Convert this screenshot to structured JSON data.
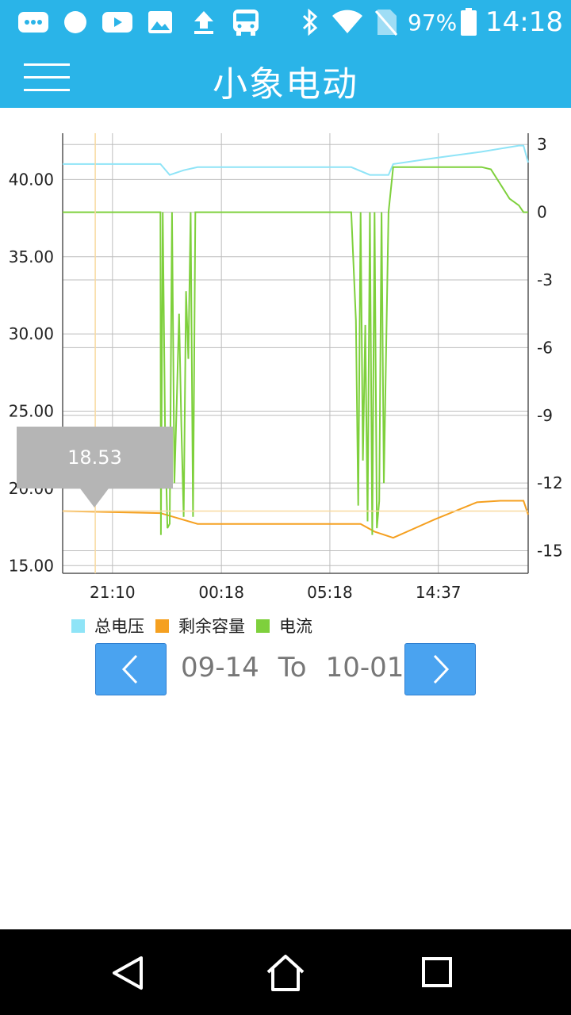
{
  "status_bar": {
    "icons": [
      "messages-icon",
      "dot-icon",
      "youtube-icon",
      "image-icon",
      "upload-icon",
      "bus-icon",
      "bluetooth-icon",
      "wifi-icon",
      "no-sim-icon",
      "battery-icon"
    ],
    "battery": "97%",
    "time": "14:18"
  },
  "toolbar": {
    "title": "小象电动",
    "menu_icon": "hamburger-menu-icon"
  },
  "chart": {
    "tooltip_value": "18.53",
    "left_axis_ticks": [
      "40.00",
      "35.00",
      "30.00",
      "25.00",
      "20.00",
      "15.00"
    ],
    "right_axis_ticks": [
      "3",
      "0",
      "-3",
      "-6",
      "-9",
      "-12",
      "-15"
    ],
    "x_ticks": [
      "21:10",
      "00:18",
      "05:18",
      "14:37"
    ]
  },
  "chart_data": {
    "type": "line",
    "x_labels": [
      "21:10",
      "00:18",
      "05:18",
      "14:37"
    ],
    "left_axis": {
      "ylim": [
        14.5,
        43.0
      ],
      "ticks": [
        15,
        20,
        25,
        30,
        35,
        40
      ]
    },
    "right_axis": {
      "ylim": [
        -16,
        3.5
      ],
      "ticks": [
        -15,
        -12,
        -9,
        -6,
        -3,
        0,
        3
      ]
    },
    "series": [
      {
        "name": "总电压",
        "color": "#8fe4f7",
        "axis": "left",
        "points": [
          [
            0.0,
            41.0
          ],
          [
            0.21,
            41.0
          ],
          [
            0.23,
            40.3
          ],
          [
            0.26,
            40.6
          ],
          [
            0.29,
            40.8
          ],
          [
            0.62,
            40.8
          ],
          [
            0.66,
            40.3
          ],
          [
            0.7,
            40.3
          ],
          [
            0.71,
            41.0
          ],
          [
            0.8,
            41.4
          ],
          [
            0.9,
            41.8
          ],
          [
            0.98,
            42.2
          ],
          [
            0.99,
            42.2
          ],
          [
            1.0,
            41.1
          ]
        ]
      },
      {
        "name": "剩余容量",
        "color": "#f5a020",
        "axis": "left",
        "points": [
          [
            0.0,
            18.53
          ],
          [
            0.21,
            18.4
          ],
          [
            0.29,
            17.7
          ],
          [
            0.64,
            17.7
          ],
          [
            0.67,
            17.2
          ],
          [
            0.71,
            16.8
          ],
          [
            0.8,
            18.0
          ],
          [
            0.89,
            19.1
          ],
          [
            0.94,
            19.2
          ],
          [
            0.99,
            19.2
          ],
          [
            1.0,
            18.3
          ]
        ]
      },
      {
        "name": "电流",
        "color": "#7ed03c",
        "axis": "right",
        "points": [
          [
            0.0,
            0.0
          ],
          [
            0.21,
            0.0
          ],
          [
            0.211,
            -14.3
          ],
          [
            0.215,
            0.0
          ],
          [
            0.22,
            -9.5
          ],
          [
            0.225,
            -14.0
          ],
          [
            0.23,
            -13.8
          ],
          [
            0.235,
            0.0
          ],
          [
            0.24,
            -12.0
          ],
          [
            0.245,
            -8.5
          ],
          [
            0.25,
            -4.5
          ],
          [
            0.255,
            -9.5
          ],
          [
            0.26,
            -13.5
          ],
          [
            0.265,
            -3.5
          ],
          [
            0.27,
            -6.5
          ],
          [
            0.275,
            0.0
          ],
          [
            0.28,
            -13.5
          ],
          [
            0.285,
            0.0
          ],
          [
            0.62,
            0.0
          ],
          [
            0.63,
            -4.8
          ],
          [
            0.635,
            -13.0
          ],
          [
            0.64,
            0.0
          ],
          [
            0.645,
            -11.0
          ],
          [
            0.65,
            -5.0
          ],
          [
            0.655,
            -13.7
          ],
          [
            0.66,
            0.0
          ],
          [
            0.665,
            -14.3
          ],
          [
            0.67,
            0.0
          ],
          [
            0.675,
            -14.0
          ],
          [
            0.68,
            -12.8
          ],
          [
            0.685,
            0.0
          ],
          [
            0.69,
            -12.0
          ],
          [
            0.7,
            0.0
          ],
          [
            0.71,
            2.0
          ],
          [
            0.9,
            2.0
          ],
          [
            0.92,
            1.9
          ],
          [
            0.96,
            0.6
          ],
          [
            0.98,
            0.3
          ],
          [
            0.99,
            0.0
          ],
          [
            1.0,
            0.0
          ]
        ]
      }
    ],
    "cursor": {
      "x": 0.07,
      "value": 18.53
    },
    "grid": true,
    "legend_position": "bottom-left"
  },
  "legend": [
    {
      "label": "总电压",
      "color": "#8fe4f7"
    },
    {
      "label": "剩余容量",
      "color": "#f5a020"
    },
    {
      "label": "电流",
      "color": "#7ed03c"
    }
  ],
  "date_range": {
    "start": "09-14",
    "separator": "To",
    "end": "10-01",
    "prev_icon": "chevron-left-icon",
    "next_icon": "chevron-right-icon"
  },
  "nav_bar": {
    "icons": [
      "back-triangle-icon",
      "home-icon",
      "recents-square-icon"
    ]
  }
}
